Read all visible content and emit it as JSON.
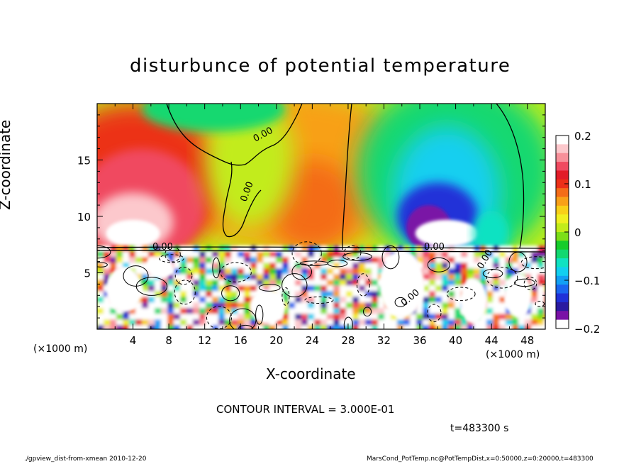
{
  "chart_data": {
    "type": "heatmap",
    "title": "disturbunce of potential temperature",
    "xlabel": "X-coordinate",
    "ylabel": "Z-coordinate",
    "x_unit": "(×1000 m)",
    "y_unit": "(×1000 m)",
    "xlim": [
      0,
      50
    ],
    "ylim": [
      0,
      20
    ],
    "x_ticks": [
      4,
      8,
      12,
      16,
      20,
      24,
      28,
      32,
      36,
      40,
      44,
      48
    ],
    "y_ticks": [
      5,
      10,
      15
    ],
    "colorbar": {
      "ticks": [
        "0.2",
        "0.1",
        "0",
        "−0.1",
        "−0.2"
      ],
      "range": [
        -0.2,
        0.2
      ],
      "colors": [
        "#7a12a6",
        "#2a1aa0",
        "#2030d8",
        "#1a66f0",
        "#12a0f4",
        "#12cff0",
        "#10e2c2",
        "#12d870",
        "#16cc2a",
        "#7cde18",
        "#c2ec1a",
        "#f0f020",
        "#f8d018",
        "#f8a018",
        "#f46c18",
        "#ec3018",
        "#e21c28",
        "#f04a60",
        "#f8909a",
        "#fcc8cc"
      ]
    },
    "contour_label": "0.00",
    "regions": [
      {
        "name": "warm anomaly upper left",
        "x": [
          0,
          12
        ],
        "z": [
          8,
          19
        ],
        "value": 0.17
      },
      {
        "name": "cool anomaly upper right",
        "x": [
          32,
          45
        ],
        "z": [
          6,
          17
        ],
        "value": -0.17
      },
      {
        "name": "near-neutral center",
        "x": [
          12,
          30
        ],
        "z": [
          8,
          20
        ],
        "value": 0.0
      },
      {
        "name": "turbulent lower layer",
        "x": [
          0,
          50
        ],
        "z": [
          0,
          7
        ],
        "value": 0.0
      }
    ]
  },
  "text": {
    "contour_interval": "CONTOUR INTERVAL = 3.000E-01",
    "time": "t=483300 s",
    "footer_left": "./gpview_dist-from-xmean  2010-12-20",
    "footer_right": "MarsCond_PotTemp.nc@PotTempDist,x=0:50000,z=0:20000,t=483300"
  }
}
